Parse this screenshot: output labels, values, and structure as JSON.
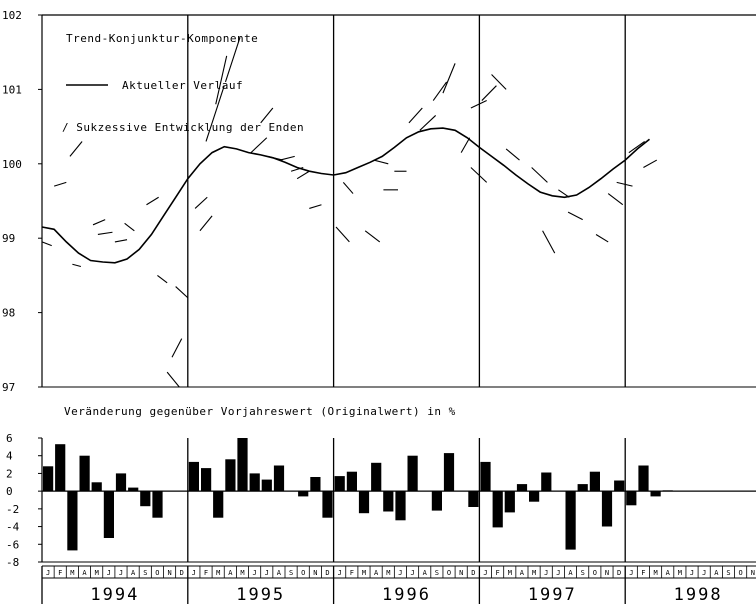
{
  "chart_data": [
    {
      "type": "line",
      "title": "Trend-Konjunktur-Komponente",
      "ylim": [
        97,
        102
      ],
      "yticks": [
        "102",
        "101",
        "100",
        "99",
        "98",
        "97"
      ],
      "legend": {
        "line_label": "Aktueller Verlauf",
        "segment_label": "/ Sukzessive Entwicklung der Enden"
      },
      "x_start_month": "1994-01",
      "series": [
        {
          "name": "Aktueller Verlauf",
          "values": [
            99.15,
            99.12,
            98.95,
            98.8,
            98.7,
            98.68,
            98.67,
            98.72,
            98.85,
            99.05,
            99.3,
            99.55,
            99.8,
            100.0,
            100.15,
            100.23,
            100.2,
            100.15,
            100.12,
            100.08,
            100.02,
            99.95,
            99.9,
            99.87,
            99.85,
            99.88,
            99.95,
            100.02,
            100.1,
            100.22,
            100.35,
            100.43,
            100.47,
            100.48,
            100.45,
            100.35,
            100.22,
            100.1,
            99.98,
            99.85,
            99.73,
            99.62,
            99.57,
            99.55,
            99.58,
            99.68,
            99.8,
            99.93,
            100.05,
            100.2,
            100.33
          ]
        }
      ],
      "end_segments": [
        [
          0.0,
          98.95,
          0.8,
          98.9
        ],
        [
          1.0,
          99.7,
          2.0,
          99.75
        ],
        [
          2.3,
          100.1,
          3.3,
          100.3
        ],
        [
          2.5,
          98.65,
          3.2,
          98.62
        ],
        [
          4.2,
          99.18,
          5.2,
          99.25
        ],
        [
          4.6,
          99.05,
          5.8,
          99.08
        ],
        [
          6.0,
          98.95,
          7.0,
          98.98
        ],
        [
          6.8,
          99.2,
          7.6,
          99.1
        ],
        [
          8.6,
          99.45,
          9.6,
          99.55
        ],
        [
          9.5,
          98.5,
          10.3,
          98.4
        ],
        [
          11.0,
          98.35,
          12.0,
          98.2
        ],
        [
          10.7,
          97.4,
          11.5,
          97.65
        ],
        [
          10.3,
          97.2,
          11.3,
          97.0
        ],
        [
          12.6,
          99.4,
          13.6,
          99.55
        ],
        [
          13.0,
          99.1,
          14.0,
          99.3
        ],
        [
          13.5,
          100.3,
          15.0,
          101.05
        ],
        [
          14.3,
          100.8,
          15.2,
          101.45
        ],
        [
          15.1,
          101.1,
          16.3,
          101.7
        ],
        [
          17.2,
          100.15,
          18.5,
          100.35
        ],
        [
          18.0,
          100.55,
          19.0,
          100.75
        ],
        [
          18.6,
          100.1,
          19.8,
          100.05
        ],
        [
          19.6,
          100.05,
          20.8,
          100.1
        ],
        [
          20.5,
          99.9,
          21.5,
          99.95
        ],
        [
          21.0,
          99.8,
          22.0,
          99.9
        ],
        [
          22.0,
          99.4,
          23.0,
          99.45
        ],
        [
          24.2,
          99.15,
          25.3,
          98.95
        ],
        [
          24.8,
          99.75,
          25.6,
          99.6
        ],
        [
          26.6,
          99.1,
          27.8,
          98.95
        ],
        [
          27.3,
          100.05,
          28.5,
          100.0
        ],
        [
          28.1,
          99.65,
          29.3,
          99.65
        ],
        [
          29.0,
          99.9,
          30.0,
          99.9
        ],
        [
          30.2,
          100.55,
          31.3,
          100.75
        ],
        [
          31.1,
          100.45,
          32.4,
          100.65
        ],
        [
          32.2,
          100.85,
          33.3,
          101.1
        ],
        [
          33.0,
          100.95,
          34.0,
          101.35
        ],
        [
          34.5,
          100.15,
          35.2,
          100.35
        ],
        [
          35.3,
          100.75,
          36.6,
          100.85
        ],
        [
          35.3,
          99.95,
          36.6,
          99.75
        ],
        [
          36.2,
          100.85,
          37.4,
          101.05
        ],
        [
          37.0,
          101.2,
          38.2,
          101.0
        ],
        [
          38.2,
          100.2,
          39.3,
          100.05
        ],
        [
          40.3,
          99.95,
          41.6,
          99.75
        ],
        [
          41.2,
          99.1,
          42.2,
          98.8
        ],
        [
          42.5,
          99.65,
          43.4,
          99.55
        ],
        [
          43.3,
          99.35,
          44.5,
          99.25
        ],
        [
          45.6,
          99.05,
          46.6,
          98.95
        ],
        [
          46.6,
          99.6,
          47.8,
          99.45
        ],
        [
          47.3,
          99.75,
          48.6,
          99.7
        ],
        [
          48.3,
          100.15,
          49.6,
          100.3
        ],
        [
          49.5,
          99.95,
          50.6,
          100.05
        ]
      ]
    },
    {
      "type": "bar",
      "title": "Veränderung gegenüber Vorjahreswert (Originalwert) in %",
      "ylim": [
        -8,
        6
      ],
      "yticks": [
        "6",
        "4",
        "2",
        "0",
        "-2",
        "-4",
        "-6",
        "-8"
      ],
      "values": [
        2.8,
        5.3,
        -6.7,
        4.0,
        1.0,
        -5.3,
        2.0,
        0.4,
        -1.7,
        -3.0,
        0,
        0,
        3.3,
        2.6,
        -3.0,
        3.6,
        6.0,
        2.0,
        1.3,
        2.9,
        0,
        -0.6,
        1.6,
        -3.0,
        1.7,
        2.2,
        -2.5,
        3.2,
        -2.3,
        -3.3,
        4.0,
        0,
        -2.2,
        4.3,
        0,
        -1.8,
        3.3,
        -4.1,
        -2.4,
        0.8,
        -1.2,
        2.1,
        0,
        -6.6,
        0.8,
        2.2,
        -4.0,
        1.2,
        -1.6,
        2.9,
        -0.6,
        0.1,
        0,
        0,
        0,
        0,
        0,
        0,
        0,
        0
      ],
      "month_letters": [
        "J",
        "F",
        "M",
        "A",
        "M",
        "J",
        "J",
        "A",
        "S",
        "O",
        "N",
        "D"
      ],
      "years": [
        "1994",
        "1995",
        "1996",
        "1997",
        "1998"
      ]
    }
  ]
}
